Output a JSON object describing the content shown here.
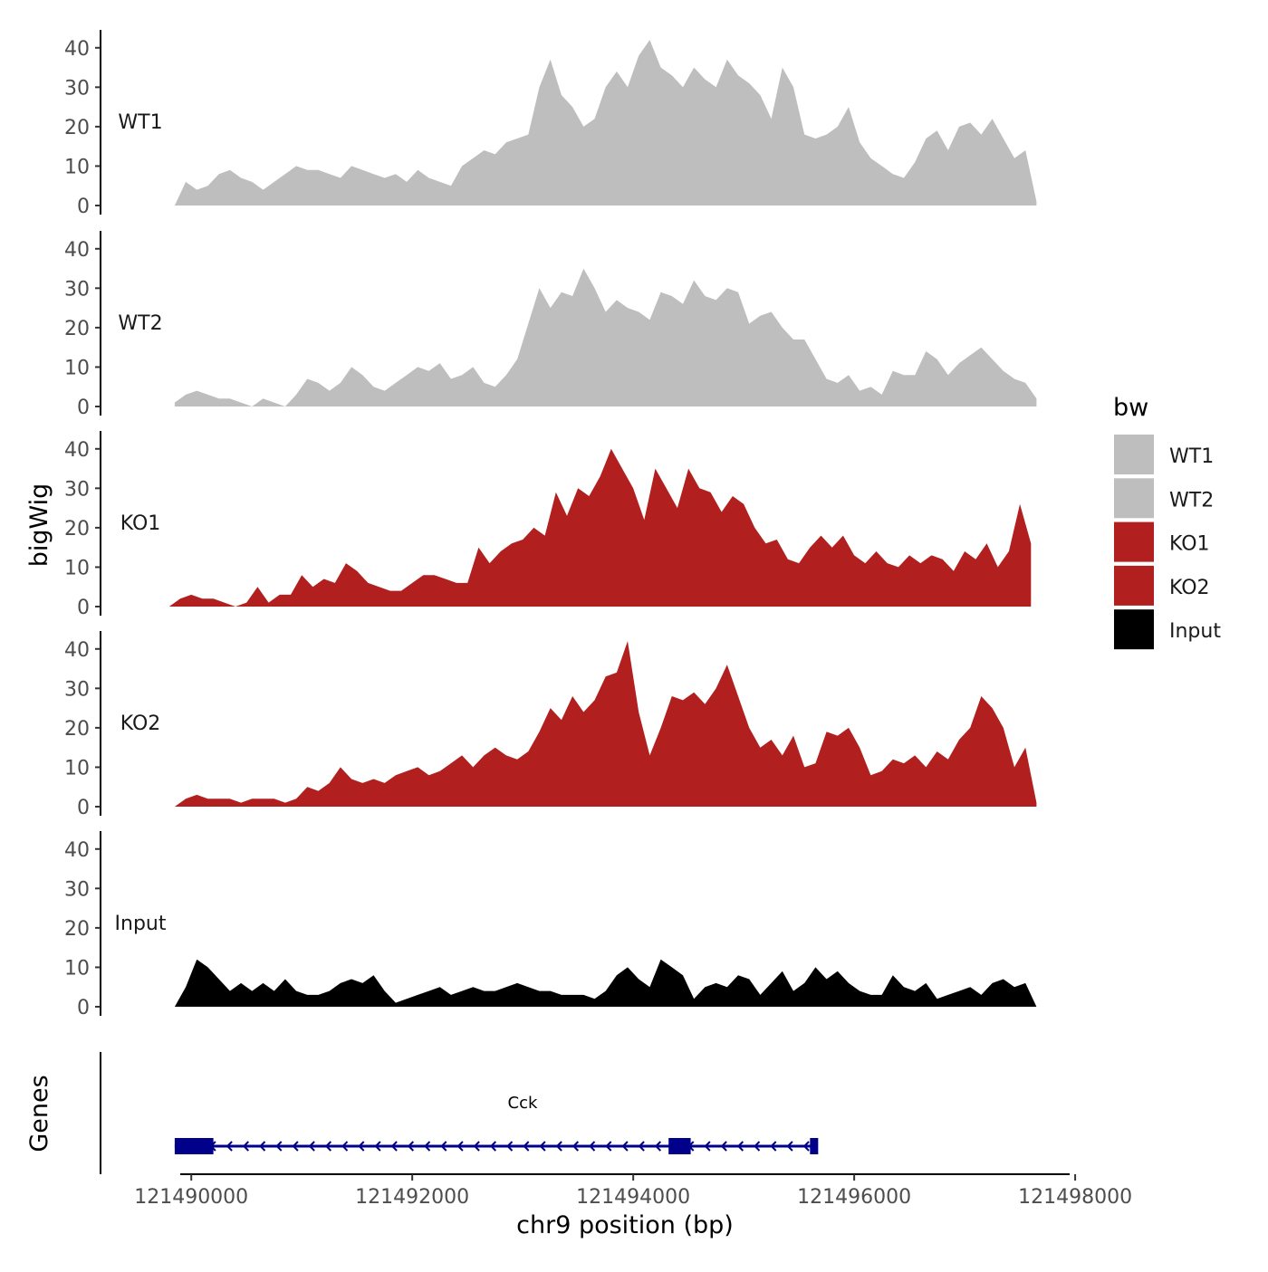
{
  "chart_data": {
    "type": "area",
    "title": "",
    "xlabel": "chr9 position (bp)",
    "ylabel": "bigWig",
    "gene_track_label": "Genes",
    "xlim": [
      121489900,
      121497950
    ],
    "ylim": [
      0,
      45
    ],
    "x_ticks": [
      121490000,
      121492000,
      121494000,
      121496000,
      121498000
    ],
    "x_tick_labels": [
      "121490000",
      "121492000",
      "121494000",
      "121496000",
      "121498000"
    ],
    "y_ticks": [
      0,
      10,
      20,
      30,
      40
    ],
    "y_tick_labels": [
      "0",
      "10",
      "20",
      "30",
      "40"
    ],
    "legend": {
      "title": "bw",
      "position": "right",
      "entries": [
        {
          "label": "WT1",
          "color": "#bebebe"
        },
        {
          "label": "WT2",
          "color": "#bebebe"
        },
        {
          "label": "KO1",
          "color": "#b21f1f"
        },
        {
          "label": "KO2",
          "color": "#b21f1f"
        },
        {
          "label": "Input",
          "color": "#000000"
        }
      ]
    },
    "series": [
      {
        "name": "WT1",
        "color": "#bebebe",
        "x": [
          121489850,
          121489950,
          121490050,
          121490150,
          121490250,
          121490350,
          121490450,
          121490550,
          121490650,
          121490750,
          121490850,
          121490950,
          121491050,
          121491150,
          121491250,
          121491350,
          121491450,
          121491550,
          121491650,
          121491750,
          121491850,
          121491950,
          121492050,
          121492150,
          121492250,
          121492350,
          121492450,
          121492550,
          121492650,
          121492750,
          121492850,
          121492950,
          121493050,
          121493150,
          121493250,
          121493350,
          121493450,
          121493550,
          121493650,
          121493750,
          121493850,
          121493950,
          121494050,
          121494150,
          121494250,
          121494350,
          121494450,
          121494550,
          121494650,
          121494750,
          121494850,
          121494950,
          121495050,
          121495150,
          121495250,
          121495350,
          121495450,
          121495550,
          121495650,
          121495750,
          121495850,
          121495950,
          121496050,
          121496150,
          121496250,
          121496350,
          121496450,
          121496550,
          121496650,
          121496750,
          121496850,
          121496950,
          121497050,
          121497150,
          121497250,
          121497350,
          121497450,
          121497550,
          121497650
        ],
        "values": [
          0,
          6,
          4,
          5,
          8,
          9,
          7,
          6,
          4,
          6,
          8,
          10,
          9,
          9,
          8,
          7,
          10,
          9,
          8,
          7,
          8,
          6,
          9,
          7,
          6,
          5,
          10,
          12,
          14,
          13,
          16,
          17,
          18,
          30,
          37,
          28,
          25,
          20,
          22,
          30,
          34,
          30,
          38,
          42,
          35,
          33,
          30,
          35,
          32,
          30,
          37,
          33,
          31,
          28,
          22,
          35,
          30,
          18,
          17,
          18,
          20,
          25,
          16,
          12,
          10,
          8,
          7,
          11,
          17,
          19,
          14,
          20,
          21,
          18,
          22,
          17,
          12,
          14,
          1
        ],
        "label_text": "WT1"
      },
      {
        "name": "WT2",
        "color": "#bebebe",
        "x": [
          121489850,
          121489950,
          121490050,
          121490150,
          121490250,
          121490350,
          121490450,
          121490550,
          121490650,
          121490750,
          121490850,
          121490950,
          121491050,
          121491150,
          121491250,
          121491350,
          121491450,
          121491550,
          121491650,
          121491750,
          121491850,
          121491950,
          121492050,
          121492150,
          121492250,
          121492350,
          121492450,
          121492550,
          121492650,
          121492750,
          121492850,
          121492950,
          121493050,
          121493150,
          121493250,
          121493350,
          121493450,
          121493550,
          121493650,
          121493750,
          121493850,
          121493950,
          121494050,
          121494150,
          121494250,
          121494350,
          121494450,
          121494550,
          121494650,
          121494750,
          121494850,
          121494950,
          121495050,
          121495150,
          121495250,
          121495350,
          121495450,
          121495550,
          121495650,
          121495750,
          121495850,
          121495950,
          121496050,
          121496150,
          121496250,
          121496350,
          121496450,
          121496550,
          121496650,
          121496750,
          121496850,
          121496950,
          121497050,
          121497150,
          121497250,
          121497350,
          121497450,
          121497550,
          121497650
        ],
        "values": [
          1,
          3,
          4,
          3,
          2,
          2,
          1,
          0,
          2,
          1,
          0,
          3,
          7,
          6,
          4,
          6,
          10,
          8,
          5,
          4,
          6,
          8,
          10,
          9,
          11,
          7,
          8,
          10,
          6,
          5,
          8,
          12,
          21,
          30,
          25,
          29,
          28,
          35,
          30,
          24,
          27,
          25,
          24,
          22,
          29,
          28,
          26,
          32,
          28,
          27,
          30,
          29,
          21,
          23,
          24,
          20,
          17,
          17,
          12,
          7,
          6,
          8,
          4,
          5,
          3,
          9,
          8,
          8,
          14,
          12,
          8,
          11,
          13,
          15,
          12,
          9,
          7,
          6,
          2
        ],
        "label_text": "WT2"
      },
      {
        "name": "KO1",
        "color": "#b21f1f",
        "x": [
          121489800,
          121489900,
          121490000,
          121490100,
          121490200,
          121490300,
          121490400,
          121490500,
          121490600,
          121490700,
          121490800,
          121490900,
          121491000,
          121491100,
          121491200,
          121491300,
          121491400,
          121491500,
          121491600,
          121491700,
          121491800,
          121491900,
          121492000,
          121492100,
          121492200,
          121492300,
          121492400,
          121492500,
          121492600,
          121492700,
          121492800,
          121492900,
          121493000,
          121493100,
          121493200,
          121493300,
          121493400,
          121493500,
          121493600,
          121493700,
          121493800,
          121493900,
          121494000,
          121494100,
          121494200,
          121494300,
          121494400,
          121494500,
          121494600,
          121494700,
          121494800,
          121494900,
          121495000,
          121495100,
          121495200,
          121495300,
          121495400,
          121495500,
          121495600,
          121495700,
          121495800,
          121495900,
          121496000,
          121496100,
          121496200,
          121496300,
          121496400,
          121496500,
          121496600,
          121496700,
          121496800,
          121496900,
          121497000,
          121497100,
          121497200,
          121497300,
          121497400,
          121497500,
          121497600
        ],
        "values": [
          0,
          2,
          3,
          2,
          2,
          1,
          0,
          1,
          5,
          1,
          3,
          3,
          8,
          5,
          7,
          6,
          11,
          9,
          6,
          5,
          4,
          4,
          6,
          8,
          8,
          7,
          6,
          6,
          15,
          11,
          14,
          16,
          17,
          20,
          18,
          29,
          23,
          30,
          28,
          33,
          40,
          35,
          30,
          22,
          35,
          30,
          25,
          35,
          30,
          29,
          24,
          28,
          26,
          20,
          16,
          17,
          12,
          11,
          15,
          18,
          15,
          18,
          13,
          11,
          14,
          11,
          10,
          13,
          11,
          13,
          12,
          9,
          14,
          12,
          16,
          10,
          14,
          26,
          16
        ],
        "label_text": "KO1"
      },
      {
        "name": "KO2",
        "color": "#b21f1f",
        "x": [
          121489850,
          121489950,
          121490050,
          121490150,
          121490250,
          121490350,
          121490450,
          121490550,
          121490650,
          121490750,
          121490850,
          121490950,
          121491050,
          121491150,
          121491250,
          121491350,
          121491450,
          121491550,
          121491650,
          121491750,
          121491850,
          121491950,
          121492050,
          121492150,
          121492250,
          121492350,
          121492450,
          121492550,
          121492650,
          121492750,
          121492850,
          121492950,
          121493050,
          121493150,
          121493250,
          121493350,
          121493450,
          121493550,
          121493650,
          121493750,
          121493850,
          121493950,
          121494050,
          121494150,
          121494250,
          121494350,
          121494450,
          121494550,
          121494650,
          121494750,
          121494850,
          121494950,
          121495050,
          121495150,
          121495250,
          121495350,
          121495450,
          121495550,
          121495650,
          121495750,
          121495850,
          121495950,
          121496050,
          121496150,
          121496250,
          121496350,
          121496450,
          121496550,
          121496650,
          121496750,
          121496850,
          121496950,
          121497050,
          121497150,
          121497250,
          121497350,
          121497450,
          121497550,
          121497650
        ],
        "values": [
          0,
          2,
          3,
          2,
          2,
          2,
          1,
          2,
          2,
          2,
          1,
          2,
          5,
          4,
          6,
          10,
          7,
          6,
          7,
          6,
          8,
          9,
          10,
          8,
          9,
          11,
          13,
          10,
          13,
          15,
          13,
          12,
          14,
          19,
          25,
          22,
          28,
          24,
          27,
          33,
          34,
          42,
          24,
          13,
          20,
          28,
          27,
          29,
          26,
          30,
          36,
          28,
          20,
          15,
          17,
          13,
          18,
          10,
          11,
          19,
          18,
          20,
          15,
          8,
          9,
          12,
          11,
          13,
          10,
          14,
          12,
          17,
          20,
          28,
          25,
          20,
          10,
          15,
          1
        ],
        "label_text": "KO2"
      },
      {
        "name": "Input",
        "color": "#000000",
        "x": [
          121489850,
          121489950,
          121490050,
          121490150,
          121490250,
          121490350,
          121490450,
          121490550,
          121490650,
          121490750,
          121490850,
          121490950,
          121491050,
          121491150,
          121491250,
          121491350,
          121491450,
          121491550,
          121491650,
          121491750,
          121491850,
          121491950,
          121492050,
          121492150,
          121492250,
          121492350,
          121492450,
          121492550,
          121492650,
          121492750,
          121492850,
          121492950,
          121493050,
          121493150,
          121493250,
          121493350,
          121493450,
          121493550,
          121493650,
          121493750,
          121493850,
          121493950,
          121494050,
          121494150,
          121494250,
          121494350,
          121494450,
          121494550,
          121494650,
          121494750,
          121494850,
          121494950,
          121495050,
          121495150,
          121495250,
          121495350,
          121495450,
          121495550,
          121495650,
          121495750,
          121495850,
          121495950,
          121496050,
          121496150,
          121496250,
          121496350,
          121496450,
          121496550,
          121496650,
          121496750,
          121496850,
          121496950,
          121497050,
          121497150,
          121497250,
          121497350,
          121497450,
          121497550,
          121497650
        ],
        "values": [
          0,
          5,
          12,
          10,
          7,
          4,
          6,
          4,
          6,
          4,
          7,
          4,
          3,
          3,
          4,
          6,
          7,
          6,
          8,
          4,
          1,
          2,
          3,
          4,
          5,
          3,
          4,
          5,
          4,
          4,
          5,
          6,
          5,
          4,
          4,
          3,
          3,
          3,
          2,
          4,
          8,
          10,
          7,
          5,
          12,
          10,
          8,
          2,
          5,
          6,
          5,
          8,
          7,
          3,
          6,
          9,
          4,
          6,
          10,
          7,
          9,
          6,
          4,
          3,
          3,
          8,
          5,
          4,
          6,
          2,
          3,
          4,
          5,
          3,
          6,
          7,
          5,
          6,
          0
        ],
        "label_text": "Input"
      }
    ],
    "gene": {
      "name": "Cck",
      "color": "#00008b",
      "strand": "-",
      "start": 121489850,
      "end": 121495650,
      "exons": [
        {
          "start": 121489850,
          "end": 121490200
        },
        {
          "start": 121494320,
          "end": 121494520
        },
        {
          "start": 121495600,
          "end": 121495650
        }
      ]
    }
  }
}
